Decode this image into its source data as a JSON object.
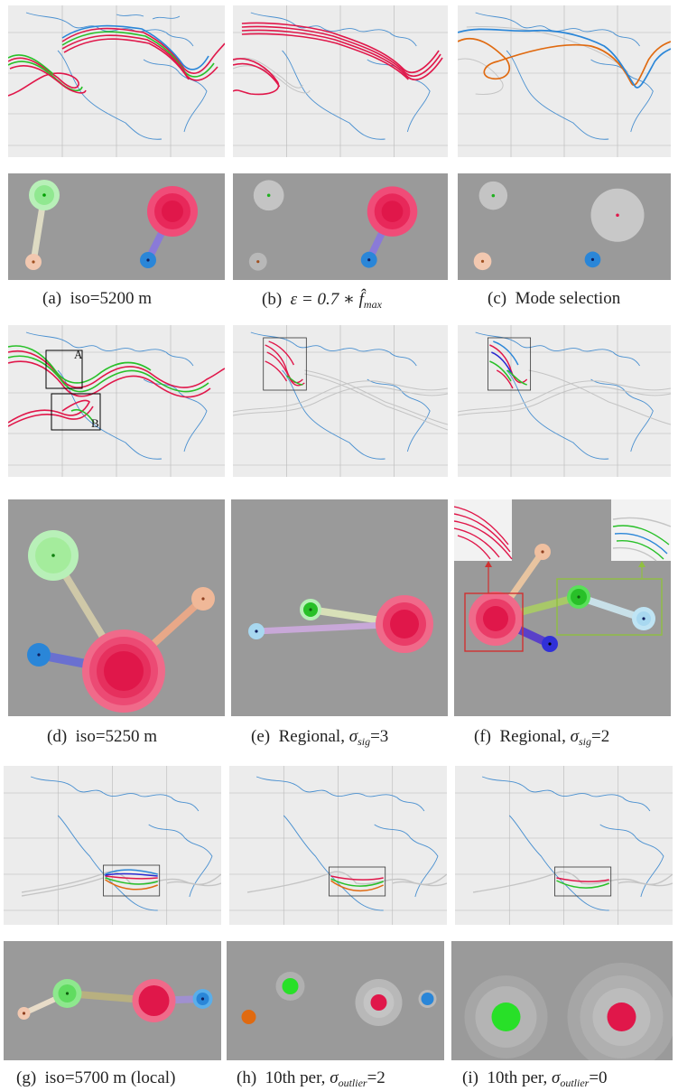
{
  "figure": {
    "captions": {
      "a": {
        "label": "(a)",
        "text": "iso=5200 m"
      },
      "b": {
        "label": "(b)",
        "pre": "ε = 0.7 ∗ ",
        "sym": "f̂",
        "sub": "max",
        "post": ""
      },
      "c": {
        "label": "(c)",
        "text": "Mode selection"
      },
      "d": {
        "label": "(d)",
        "text": "iso=5250 m"
      },
      "e": {
        "label": "(e)",
        "pre": "Regional, ",
        "sym": "σ",
        "sub": "sig",
        "post": "=3"
      },
      "f": {
        "label": "(f)",
        "pre": "Regional, ",
        "sym": "σ",
        "sub": "sig",
        "post": "=2"
      },
      "g": {
        "label": "(g)",
        "text": "iso=5700 m (local)"
      },
      "h": {
        "label": "(h)",
        "pre": "10th per, ",
        "sym": "σ",
        "sub": "outlier",
        "post": "=2"
      },
      "i": {
        "label": "(i)",
        "pre": "10th per, ",
        "sym": "σ",
        "sub": "outlier",
        "post": "=0"
      }
    },
    "region_labels": {
      "a": "A",
      "b": "B"
    },
    "colors": {
      "map_bg": "#ececec",
      "graph_bg": "#9a9a9a",
      "coast": "#4a90d0",
      "red": "#e0174a",
      "green": "#28c028",
      "blue": "#2a86d8",
      "orange": "#e06a10",
      "peach": "#f0c0a0",
      "navy": "#2a2ad0",
      "gray": "#c4c4c4"
    }
  }
}
